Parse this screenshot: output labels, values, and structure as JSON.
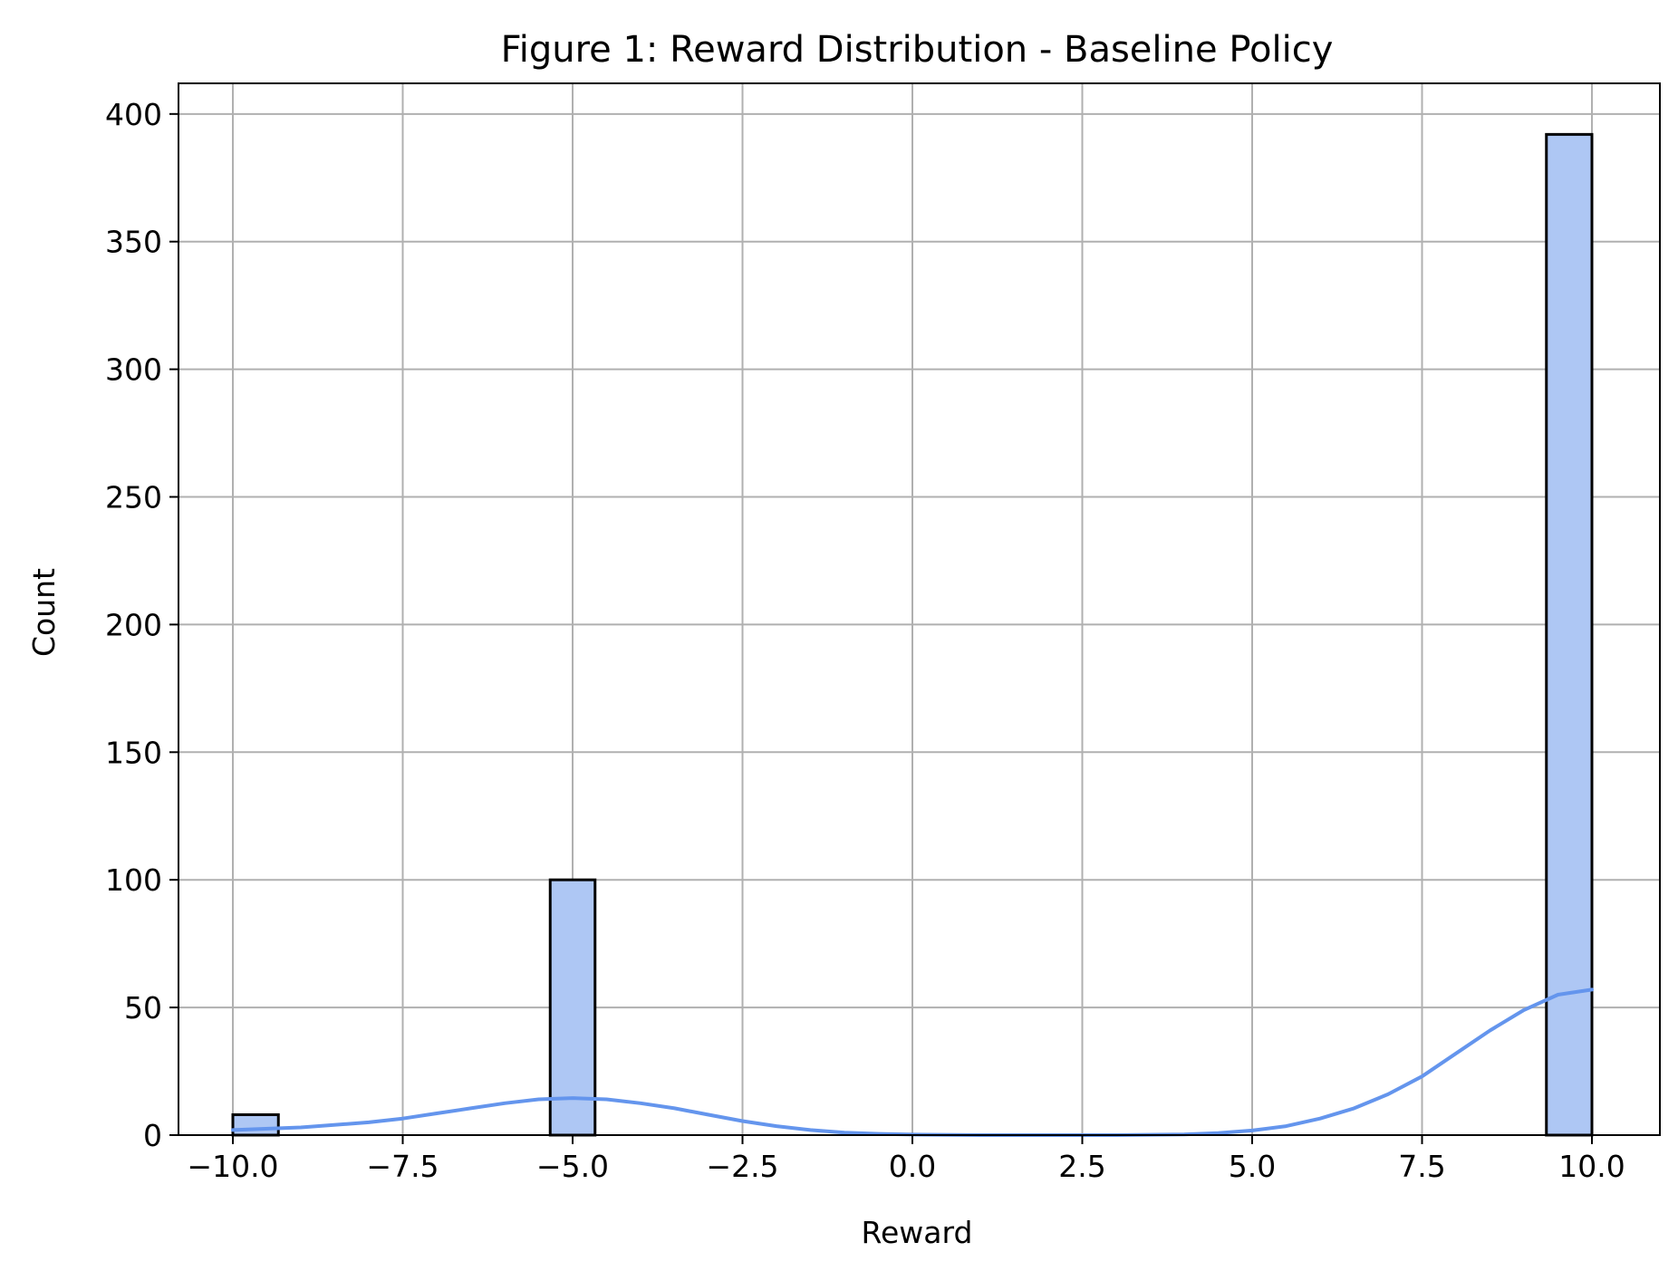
{
  "chart_data": {
    "type": "bar",
    "title": "Figure 1: Reward Distribution - Baseline Policy",
    "xlabel": "Reward",
    "ylabel": "Count",
    "xlim": [
      -10.8,
      11.0
    ],
    "ylim": [
      0,
      412
    ],
    "grid": true,
    "x_ticks": [
      -10.0,
      -7.5,
      -5.0,
      -2.5,
      0.0,
      2.5,
      5.0,
      7.5,
      10.0
    ],
    "x_tick_labels": [
      "−10.0",
      "−7.5",
      "−5.0",
      "−2.5",
      "0.0",
      "2.5",
      "5.0",
      "7.5",
      "10.0"
    ],
    "y_ticks": [
      0,
      50,
      100,
      150,
      200,
      250,
      300,
      350,
      400
    ],
    "y_tick_labels": [
      "0",
      "50",
      "100",
      "150",
      "200",
      "250",
      "300",
      "350",
      "400"
    ],
    "bars": [
      {
        "x0": -10.0,
        "x1": -9.33,
        "value": 8
      },
      {
        "x0": -5.33,
        "x1": -4.67,
        "value": 100
      },
      {
        "x0": 9.33,
        "x1": 10.0,
        "value": 392
      }
    ],
    "kde_curve": {
      "x": [
        -10.0,
        -9.0,
        -8.0,
        -7.5,
        -7.0,
        -6.5,
        -6.0,
        -5.5,
        -5.0,
        -4.5,
        -4.0,
        -3.5,
        -3.0,
        -2.5,
        -2.0,
        -1.5,
        -1.0,
        -0.5,
        0.0,
        1.0,
        2.0,
        3.0,
        4.0,
        4.5,
        5.0,
        5.5,
        6.0,
        6.5,
        7.0,
        7.5,
        8.0,
        8.5,
        9.0,
        9.5,
        10.0
      ],
      "y": [
        2,
        3,
        5,
        6.5,
        8.5,
        10.5,
        12.5,
        14,
        14.5,
        14,
        12.5,
        10.5,
        8,
        5.5,
        3.5,
        2,
        1,
        0.5,
        0.2,
        0,
        0,
        0,
        0.3,
        0.8,
        1.8,
        3.5,
        6.5,
        10.5,
        16,
        23,
        32,
        41,
        49,
        55,
        57
      ]
    },
    "colors": {
      "bar_fill": "#aec7f4",
      "bar_edge": "#000000",
      "kde_line": "#6495ed",
      "grid": "#b0b0b0"
    }
  }
}
